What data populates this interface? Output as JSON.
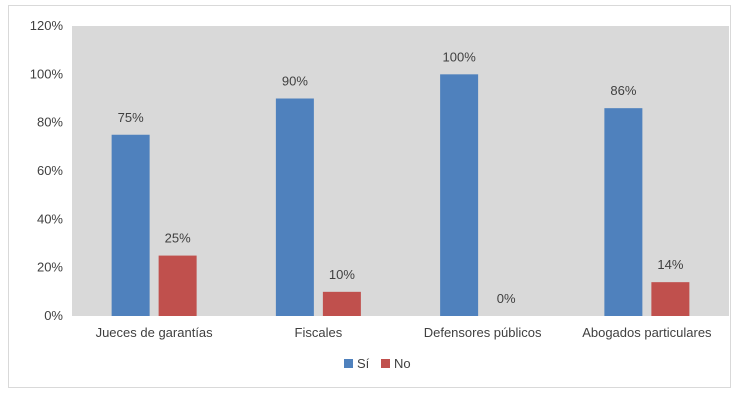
{
  "chart_data": {
    "type": "bar",
    "categories": [
      "Jueces de garantías",
      "Fiscales",
      "Defensores públicos",
      "Abogados particulares"
    ],
    "series": [
      {
        "name": "Sí",
        "color": "#4f81bd",
        "values": [
          75,
          90,
          100,
          86
        ],
        "labels": [
          "75%",
          "90%",
          "100%",
          "86%"
        ]
      },
      {
        "name": "No",
        "color": "#c0504d",
        "values": [
          25,
          10,
          0,
          14
        ],
        "labels": [
          "25%",
          "10%",
          "0%",
          "14%"
        ]
      }
    ],
    "yticks": [
      "0%",
      "20%",
      "40%",
      "60%",
      "80%",
      "100%",
      "120%"
    ],
    "ylim": [
      0,
      120
    ],
    "grid": false,
    "plot_background": "#d9d9d9",
    "legend_position": "bottom",
    "title": "",
    "xlabel": "",
    "ylabel": ""
  }
}
